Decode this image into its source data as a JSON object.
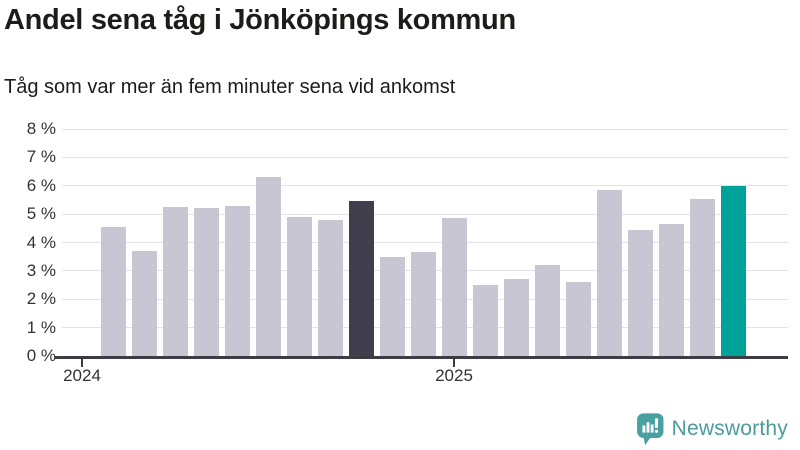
{
  "header": {
    "title": "Andel sena tåg i Jönköpings kommun",
    "subtitle": "Tåg som var mer än fem minuter sena vid ankomst"
  },
  "chart_data": {
    "type": "bar",
    "title": "Andel sena tåg i Jönköpings kommun",
    "subtitle": "Tåg som var mer än fem minuter sena vid ankomst",
    "unit": "percent share of trains more than five minutes late at arrival",
    "categories": [
      "2024-02",
      "2024-03",
      "2024-04",
      "2024-05",
      "2024-06",
      "2024-07",
      "2024-08",
      "2024-09",
      "2024-10",
      "2024-11",
      "2024-12",
      "2025-01",
      "2025-02",
      "2025-03",
      "2025-04",
      "2025-05",
      "2025-06",
      "2025-07",
      "2025-08",
      "2025-09",
      "2025-10"
    ],
    "values": [
      4.55,
      3.7,
      5.25,
      5.2,
      5.3,
      6.3,
      4.9,
      4.8,
      5.45,
      3.5,
      3.65,
      4.85,
      2.5,
      2.7,
      3.2,
      2.6,
      5.85,
      4.45,
      4.65,
      5.55,
      6.0
    ],
    "highlight_dark_index": 8,
    "highlight_accent_index": 20,
    "ylim": [
      0,
      8
    ],
    "y_ticks": [
      "0 %",
      "1 %",
      "2 %",
      "3 %",
      "4 %",
      "5 %",
      "6 %",
      "7 %",
      "8 %"
    ],
    "x_ticks": [
      {
        "label": "2024",
        "month_offset": 0
      },
      {
        "label": "2025",
        "month_offset": 12
      }
    ],
    "grid": true,
    "legend": "none"
  },
  "colors": {
    "bar_default": "#c9c6d3",
    "bar_dark": "#403e4c",
    "bar_accent": "#00a29a",
    "gridline": "#e3e3e6",
    "axis": "#3c3c44",
    "tick_text": "#333333",
    "title_text": "#1c1c1a",
    "logo": "#4aa0a0"
  },
  "branding": {
    "label": "Newsworthy"
  }
}
